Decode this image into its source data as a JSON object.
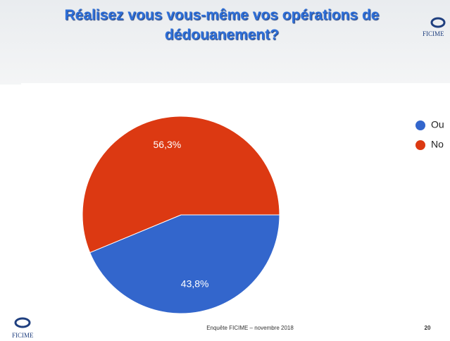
{
  "header": {
    "title": "Réalisez vous vous-même vos opérations de dédouanement?",
    "logo": "FICIME"
  },
  "chart_data": {
    "type": "pie",
    "categories": [
      "Ou",
      "No"
    ],
    "values": [
      43.8,
      56.3
    ],
    "value_labels": [
      "43,8%",
      "56,3%"
    ],
    "colors": [
      "#3366cc",
      "#dc3912"
    ],
    "legend": "right"
  },
  "footer": {
    "text": "Enquête FICIME – novembre 2018",
    "page": "20"
  }
}
